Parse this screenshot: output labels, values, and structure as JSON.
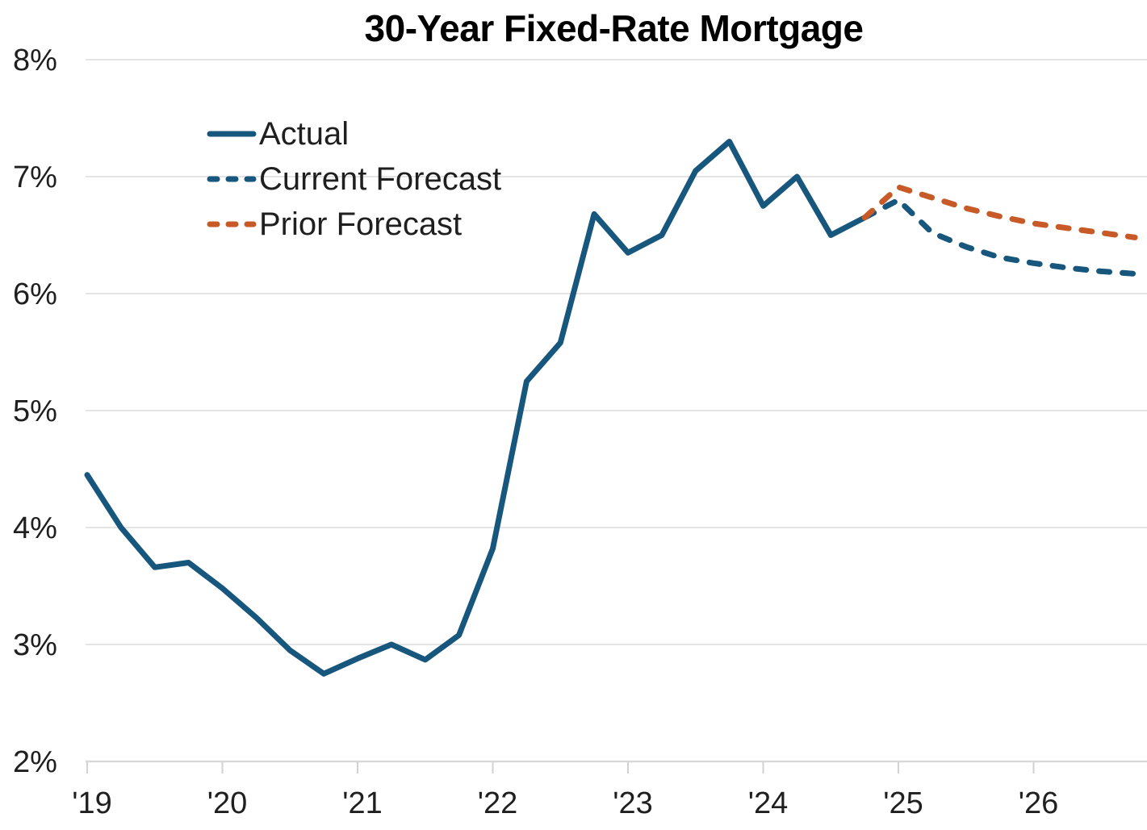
{
  "title": "30-Year Fixed-Rate Mortgage",
  "chart_data": {
    "type": "line",
    "title": "30-Year Fixed-Rate Mortgage",
    "xlabel": "",
    "ylabel": "",
    "grid": "horizontal",
    "legend_position": "upper-left-inside",
    "ylim": [
      2,
      8
    ],
    "xlim": [
      2019.0,
      2026.85
    ],
    "y_ticks": {
      "values": [
        2,
        3,
        4,
        5,
        6,
        7,
        8
      ],
      "labels": [
        "2%",
        "3%",
        "4%",
        "5%",
        "6%",
        "7%",
        "8%"
      ]
    },
    "x_ticks": {
      "values": [
        2019,
        2020,
        2021,
        2022,
        2023,
        2024,
        2025,
        2026
      ],
      "labels": [
        "'19",
        "'20",
        "'21",
        "'22",
        "'23",
        "'24",
        "'25",
        "'26"
      ]
    },
    "series": [
      {
        "name": "Actual",
        "style": "solid",
        "color": "#17567D",
        "x": [
          2019.0,
          2019.25,
          2019.5,
          2019.75,
          2020.0,
          2020.25,
          2020.5,
          2020.75,
          2021.0,
          2021.25,
          2021.5,
          2021.75,
          2022.0,
          2022.25,
          2022.5,
          2022.75,
          2023.0,
          2023.25,
          2023.5,
          2023.75,
          2024.0,
          2024.25,
          2024.5,
          2024.75
        ],
        "values": [
          4.45,
          4.0,
          3.66,
          3.7,
          3.48,
          3.23,
          2.95,
          2.75,
          2.88,
          3.0,
          2.87,
          3.08,
          3.82,
          5.25,
          5.58,
          6.68,
          6.35,
          6.5,
          7.05,
          7.3,
          6.75,
          7.0,
          6.5,
          6.65
        ]
      },
      {
        "name": "Current Forecast",
        "style": "dashed",
        "color": "#17567D",
        "x": [
          2024.75,
          2025.0,
          2025.25,
          2025.5,
          2025.75,
          2026.0,
          2026.25,
          2026.5,
          2026.75
        ],
        "values": [
          6.65,
          6.8,
          6.52,
          6.4,
          6.31,
          6.26,
          6.22,
          6.19,
          6.17
        ]
      },
      {
        "name": "Prior Forecast",
        "style": "dashed",
        "color": "#C85A28",
        "x": [
          2024.75,
          2025.0,
          2025.25,
          2025.5,
          2025.75,
          2026.0,
          2026.25,
          2026.5,
          2026.75
        ],
        "values": [
          6.65,
          6.91,
          6.82,
          6.73,
          6.66,
          6.6,
          6.56,
          6.52,
          6.48
        ]
      }
    ],
    "colors": {
      "grid": "#E4E4E4",
      "axis": "#D8D8D8",
      "tick": "#D2D2D2",
      "tick_label": "#1f1f1f"
    }
  },
  "legend": {
    "items": [
      {
        "label": "Actual"
      },
      {
        "label": "Current Forecast"
      },
      {
        "label": "Prior Forecast"
      }
    ]
  }
}
